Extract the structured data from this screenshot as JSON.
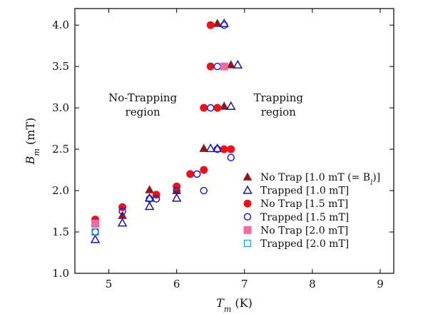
{
  "chart_data": {
    "type": "scatter",
    "title": "",
    "xlabel": "T_m (K)",
    "ylabel": "B_m (mT)",
    "xlim": [
      4.5,
      9.2
    ],
    "ylim": [
      1.0,
      4.2
    ],
    "xticks": [
      5,
      6,
      7,
      8,
      9
    ],
    "yticks": [
      1.0,
      1.5,
      2.0,
      2.5,
      3.0,
      3.5,
      4.0
    ],
    "xtick_labels": [
      "5",
      "6",
      "7",
      "8",
      "9"
    ],
    "ytick_labels": [
      "1.0",
      "1.5",
      "2.0",
      "2.5",
      "3.0",
      "3.5",
      "4.0"
    ],
    "legend_position": "lower-right",
    "annotations": [
      {
        "lines": [
          "No-Trapping",
          "region"
        ],
        "x": 5.5,
        "y": 3.08
      },
      {
        "lines": [
          "Trapping",
          "region"
        ],
        "x": 7.5,
        "y": 3.08
      }
    ],
    "series": [
      {
        "name": "No Trap [1.0 mT (= B_l)]",
        "marker": "triangle-filled",
        "color": "#8b1a1a",
        "points": [
          [
            5.2,
            1.7
          ],
          [
            5.6,
            2.01
          ],
          [
            6.0,
            2.0
          ],
          [
            6.4,
            2.51
          ],
          [
            6.6,
            4.02
          ],
          [
            6.7,
            3.02
          ],
          [
            6.8,
            3.52
          ]
        ]
      },
      {
        "name": "Trapped [1.0 mT]",
        "marker": "triangle-open",
        "color": "#1a1aa0",
        "points": [
          [
            4.8,
            1.41
          ],
          [
            5.2,
            1.61
          ],
          [
            5.6,
            1.81
          ],
          [
            5.6,
            1.91
          ],
          [
            6.0,
            1.91
          ],
          [
            6.5,
            2.51
          ],
          [
            6.6,
            2.51
          ],
          [
            6.7,
            4.02
          ],
          [
            6.8,
            3.02
          ],
          [
            6.9,
            3.52
          ]
        ]
      },
      {
        "name": "No Trap [1.5 mT]",
        "marker": "circle-filled",
        "color": "#e8141c",
        "points": [
          [
            4.8,
            1.65
          ],
          [
            5.2,
            1.8
          ],
          [
            5.7,
            1.95
          ],
          [
            6.0,
            2.05
          ],
          [
            6.2,
            2.2
          ],
          [
            6.4,
            2.25
          ],
          [
            6.4,
            3.0
          ],
          [
            6.5,
            3.5
          ],
          [
            6.5,
            4.0
          ],
          [
            6.6,
            3.0
          ],
          [
            6.7,
            2.5
          ],
          [
            6.8,
            2.5
          ]
        ]
      },
      {
        "name": "Trapped [1.5 mT]",
        "marker": "circle-open",
        "color": "#1a1ae0",
        "points": [
          [
            4.8,
            1.5
          ],
          [
            5.2,
            1.75
          ],
          [
            5.6,
            1.9
          ],
          [
            5.7,
            1.9
          ],
          [
            6.0,
            2.0
          ],
          [
            6.3,
            2.2
          ],
          [
            6.4,
            2.0
          ],
          [
            6.5,
            3.0
          ],
          [
            6.6,
            2.5
          ],
          [
            6.6,
            3.5
          ],
          [
            6.7,
            4.0
          ],
          [
            6.8,
            2.4
          ]
        ]
      },
      {
        "name": "No Trap [2.0 mT]",
        "marker": "square-filled",
        "color": "#f06aa8",
        "points": [
          [
            4.8,
            1.6
          ],
          [
            6.7,
            3.5
          ]
        ]
      },
      {
        "name": "Trapped [2.0 mT]",
        "marker": "square-open",
        "color": "#1aa0e0",
        "points": [
          [
            4.8,
            1.5
          ]
        ]
      }
    ]
  },
  "legend": {
    "entries": [
      {
        "label": "No Trap [1.0 mT (= B",
        "sub": "l",
        "tail": ")]"
      },
      {
        "label": "Trapped [1.0 mT]"
      },
      {
        "label": "No Trap [1.5 mT]"
      },
      {
        "label": "Trapped [1.5 mT]"
      },
      {
        "label": "No Trap [2.0 mT]"
      },
      {
        "label": "Trapped [2.0 mT]"
      }
    ]
  },
  "axes_text": {
    "x_main": "T",
    "x_sub": "m",
    "x_unit": " (K)",
    "y_main": "B",
    "y_sub": "m",
    "y_unit": " (mT)"
  }
}
